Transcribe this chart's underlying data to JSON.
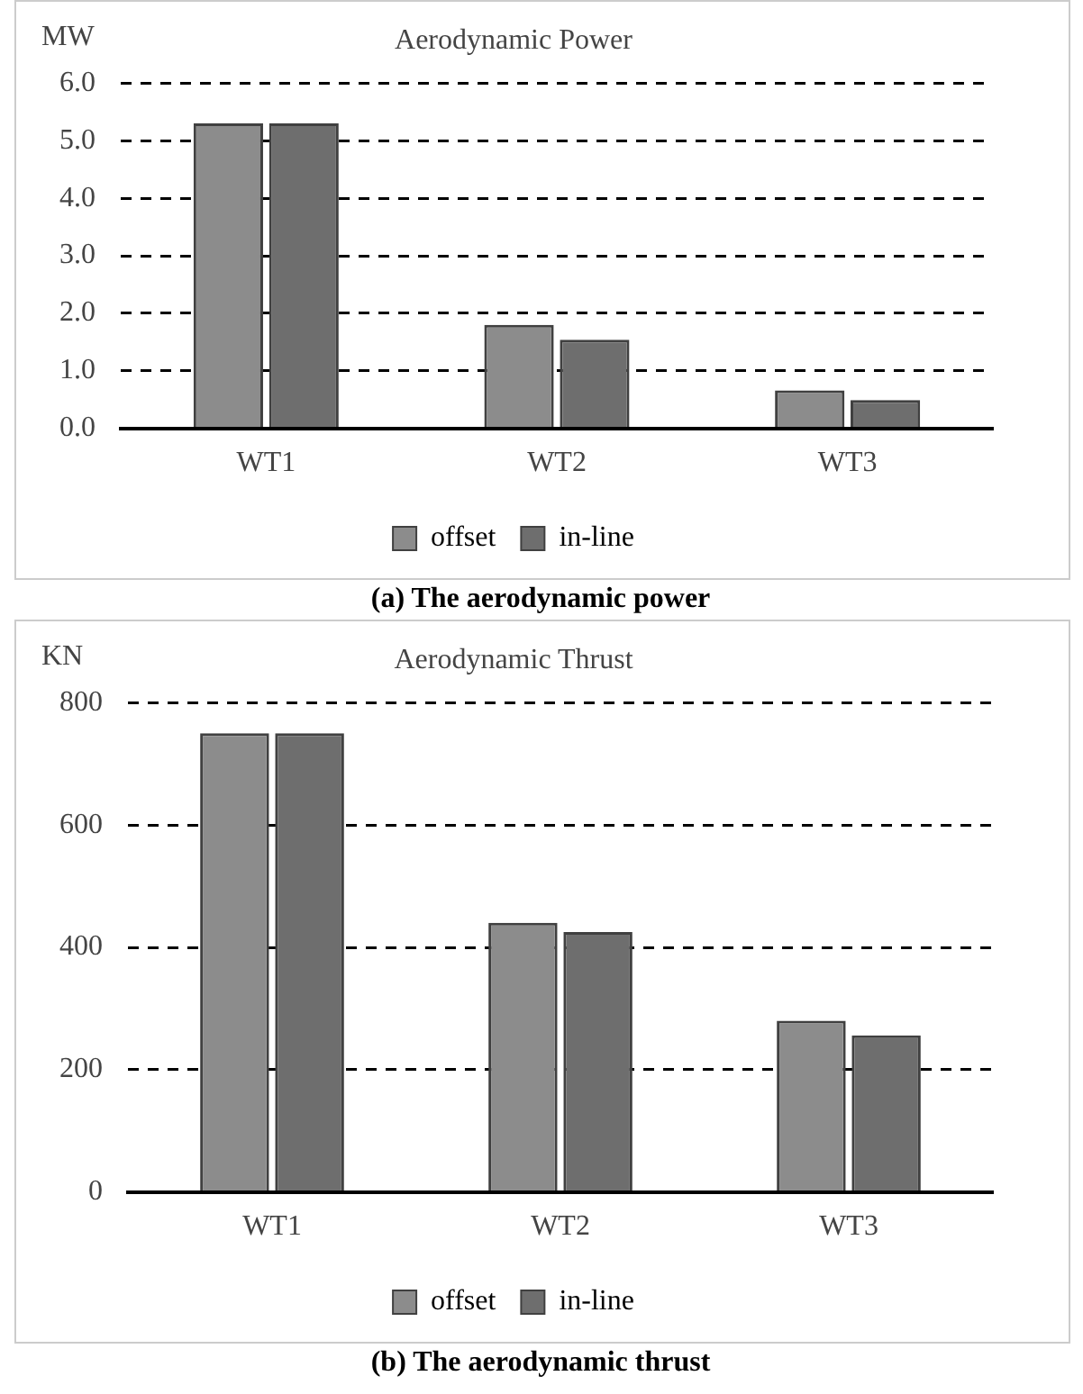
{
  "chart_data": [
    {
      "type": "bar",
      "title": "Aerodynamic Power",
      "ylabel": "MW",
      "categories": [
        "WT1",
        "WT2",
        "WT3"
      ],
      "series": [
        {
          "name": "offset",
          "color": "#8c8c8c",
          "values": [
            5.3,
            1.8,
            0.66
          ]
        },
        {
          "name": "in-line",
          "color": "#6e6e6e",
          "values": [
            5.3,
            1.54,
            0.49
          ]
        }
      ],
      "ylim": [
        0,
        6
      ],
      "yticks": [
        {
          "value": 0,
          "label": "0.0"
        },
        {
          "value": 1,
          "label": "1.0"
        },
        {
          "value": 2,
          "label": "2.0"
        },
        {
          "value": 3,
          "label": "3.0"
        },
        {
          "value": 4,
          "label": "4.0"
        },
        {
          "value": 5,
          "label": "5.0"
        },
        {
          "value": 6,
          "label": "6.0"
        }
      ],
      "grid": "y",
      "legend": "bottom",
      "annotations": [
        "(a) The aerodynamic power"
      ]
    },
    {
      "type": "bar",
      "title": "Aerodynamic Thrust",
      "ylabel": "KN",
      "categories": [
        "WT1",
        "WT2",
        "WT3"
      ],
      "series": [
        {
          "name": "offset",
          "color": "#8c8c8c",
          "values": [
            750,
            440,
            280
          ]
        },
        {
          "name": "in-line",
          "color": "#6e6e6e",
          "values": [
            750,
            425,
            256
          ]
        }
      ],
      "ylim": [
        0,
        800
      ],
      "yticks": [
        0,
        200,
        400,
        600,
        800
      ],
      "grid": "y",
      "legend": "bottom",
      "annotations": [
        "(b) The aerodynamic thrust"
      ]
    }
  ]
}
